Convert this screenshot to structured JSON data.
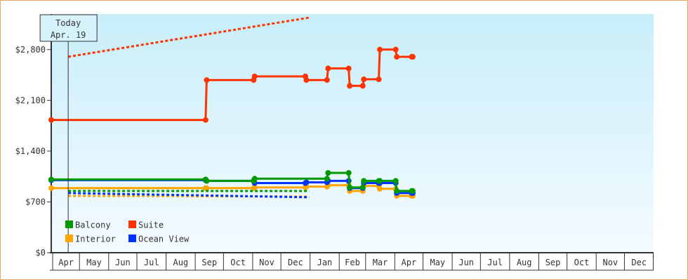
{
  "chart_data": {
    "type": "line",
    "title": "",
    "xlabel": "",
    "ylabel": "",
    "ylim": [
      0,
      3290
    ],
    "yticks": [
      0,
      700,
      1400,
      2100,
      2800
    ],
    "ytick_labels": [
      "$0",
      "$700",
      "$1,400",
      "$2,100",
      "$2,800"
    ],
    "xtick_labels": [
      "Apr",
      "May",
      "Jun",
      "Jul",
      "Aug",
      "Sep",
      "Oct",
      "Nov",
      "Dec",
      "Jan",
      "Feb",
      "Mar",
      "Apr",
      "May",
      "Jun",
      "Jul",
      "Aug",
      "Sep",
      "Oct",
      "Nov",
      "Dec"
    ],
    "grid": false,
    "step": true,
    "today": {
      "label": "Today",
      "date": "Apr. 19",
      "date_point": "Apr 19"
    },
    "legend_placement": "bottom-left",
    "series": [
      {
        "name": "Balcony",
        "color": "#009900",
        "points": [
          [
            "Apr 1",
            1010
          ],
          [
            "Sep 12",
            990
          ],
          [
            "Nov 2",
            1020
          ],
          [
            "Jan 19",
            1100
          ],
          [
            "Feb 11",
            900
          ],
          [
            "Feb 26",
            990
          ],
          [
            "Mar 15",
            990
          ],
          [
            "Apr 2",
            851
          ],
          [
            "Apr 19",
            851
          ]
        ],
        "forecast": [
          [
            "Apr 19",
            851
          ],
          [
            "Dec 31",
            850
          ]
        ]
      },
      {
        "name": "Suite",
        "color": "#ff3300",
        "points": [
          [
            "Apr 1",
            1830
          ],
          [
            "Sep 12",
            2380
          ],
          [
            "Nov 2",
            2430
          ],
          [
            "Dec 27",
            2380
          ],
          [
            "Jan 19",
            2540
          ],
          [
            "Feb 11",
            2300
          ],
          [
            "Feb 26",
            2390
          ],
          [
            "Mar 15",
            2800
          ],
          [
            "Apr 2",
            2700
          ],
          [
            "Apr 19",
            2700
          ]
        ],
        "forecast": [
          [
            "Apr 19",
            2700
          ],
          [
            "Dec 31",
            3240
          ]
        ]
      },
      {
        "name": "Interior",
        "color": "#ffa500",
        "points": [
          [
            "Apr 1",
            890
          ],
          [
            "Sep 12",
            890
          ],
          [
            "Nov 2",
            900
          ],
          [
            "Dec 27",
            910
          ],
          [
            "Jan 19",
            930
          ],
          [
            "Feb 11",
            850
          ],
          [
            "Feb 26",
            920
          ],
          [
            "Mar 15",
            880
          ],
          [
            "Apr 2",
            783
          ],
          [
            "Apr 19",
            783
          ]
        ],
        "forecast": [
          [
            "Apr 19",
            783
          ],
          [
            "Dec 31",
            774
          ]
        ]
      },
      {
        "name": "Ocean View",
        "color": "#0033ff",
        "points": [
          [
            "Apr 1",
            1000
          ],
          [
            "Sep 12",
            990
          ],
          [
            "Nov 2",
            960
          ],
          [
            "Dec 27",
            970
          ],
          [
            "Jan 19",
            990
          ],
          [
            "Feb 11",
            890
          ],
          [
            "Feb 26",
            960
          ],
          [
            "Mar 15",
            960
          ],
          [
            "Apr 2",
            822
          ],
          [
            "Apr 19",
            822
          ]
        ],
        "forecast": [
          [
            "Apr 19",
            822
          ],
          [
            "Dec 31",
            764
          ]
        ]
      }
    ]
  },
  "colors": {
    "border": "#e8a860",
    "bg_top": "#c8eefa",
    "bg_bottom": "#f4fbff"
  }
}
